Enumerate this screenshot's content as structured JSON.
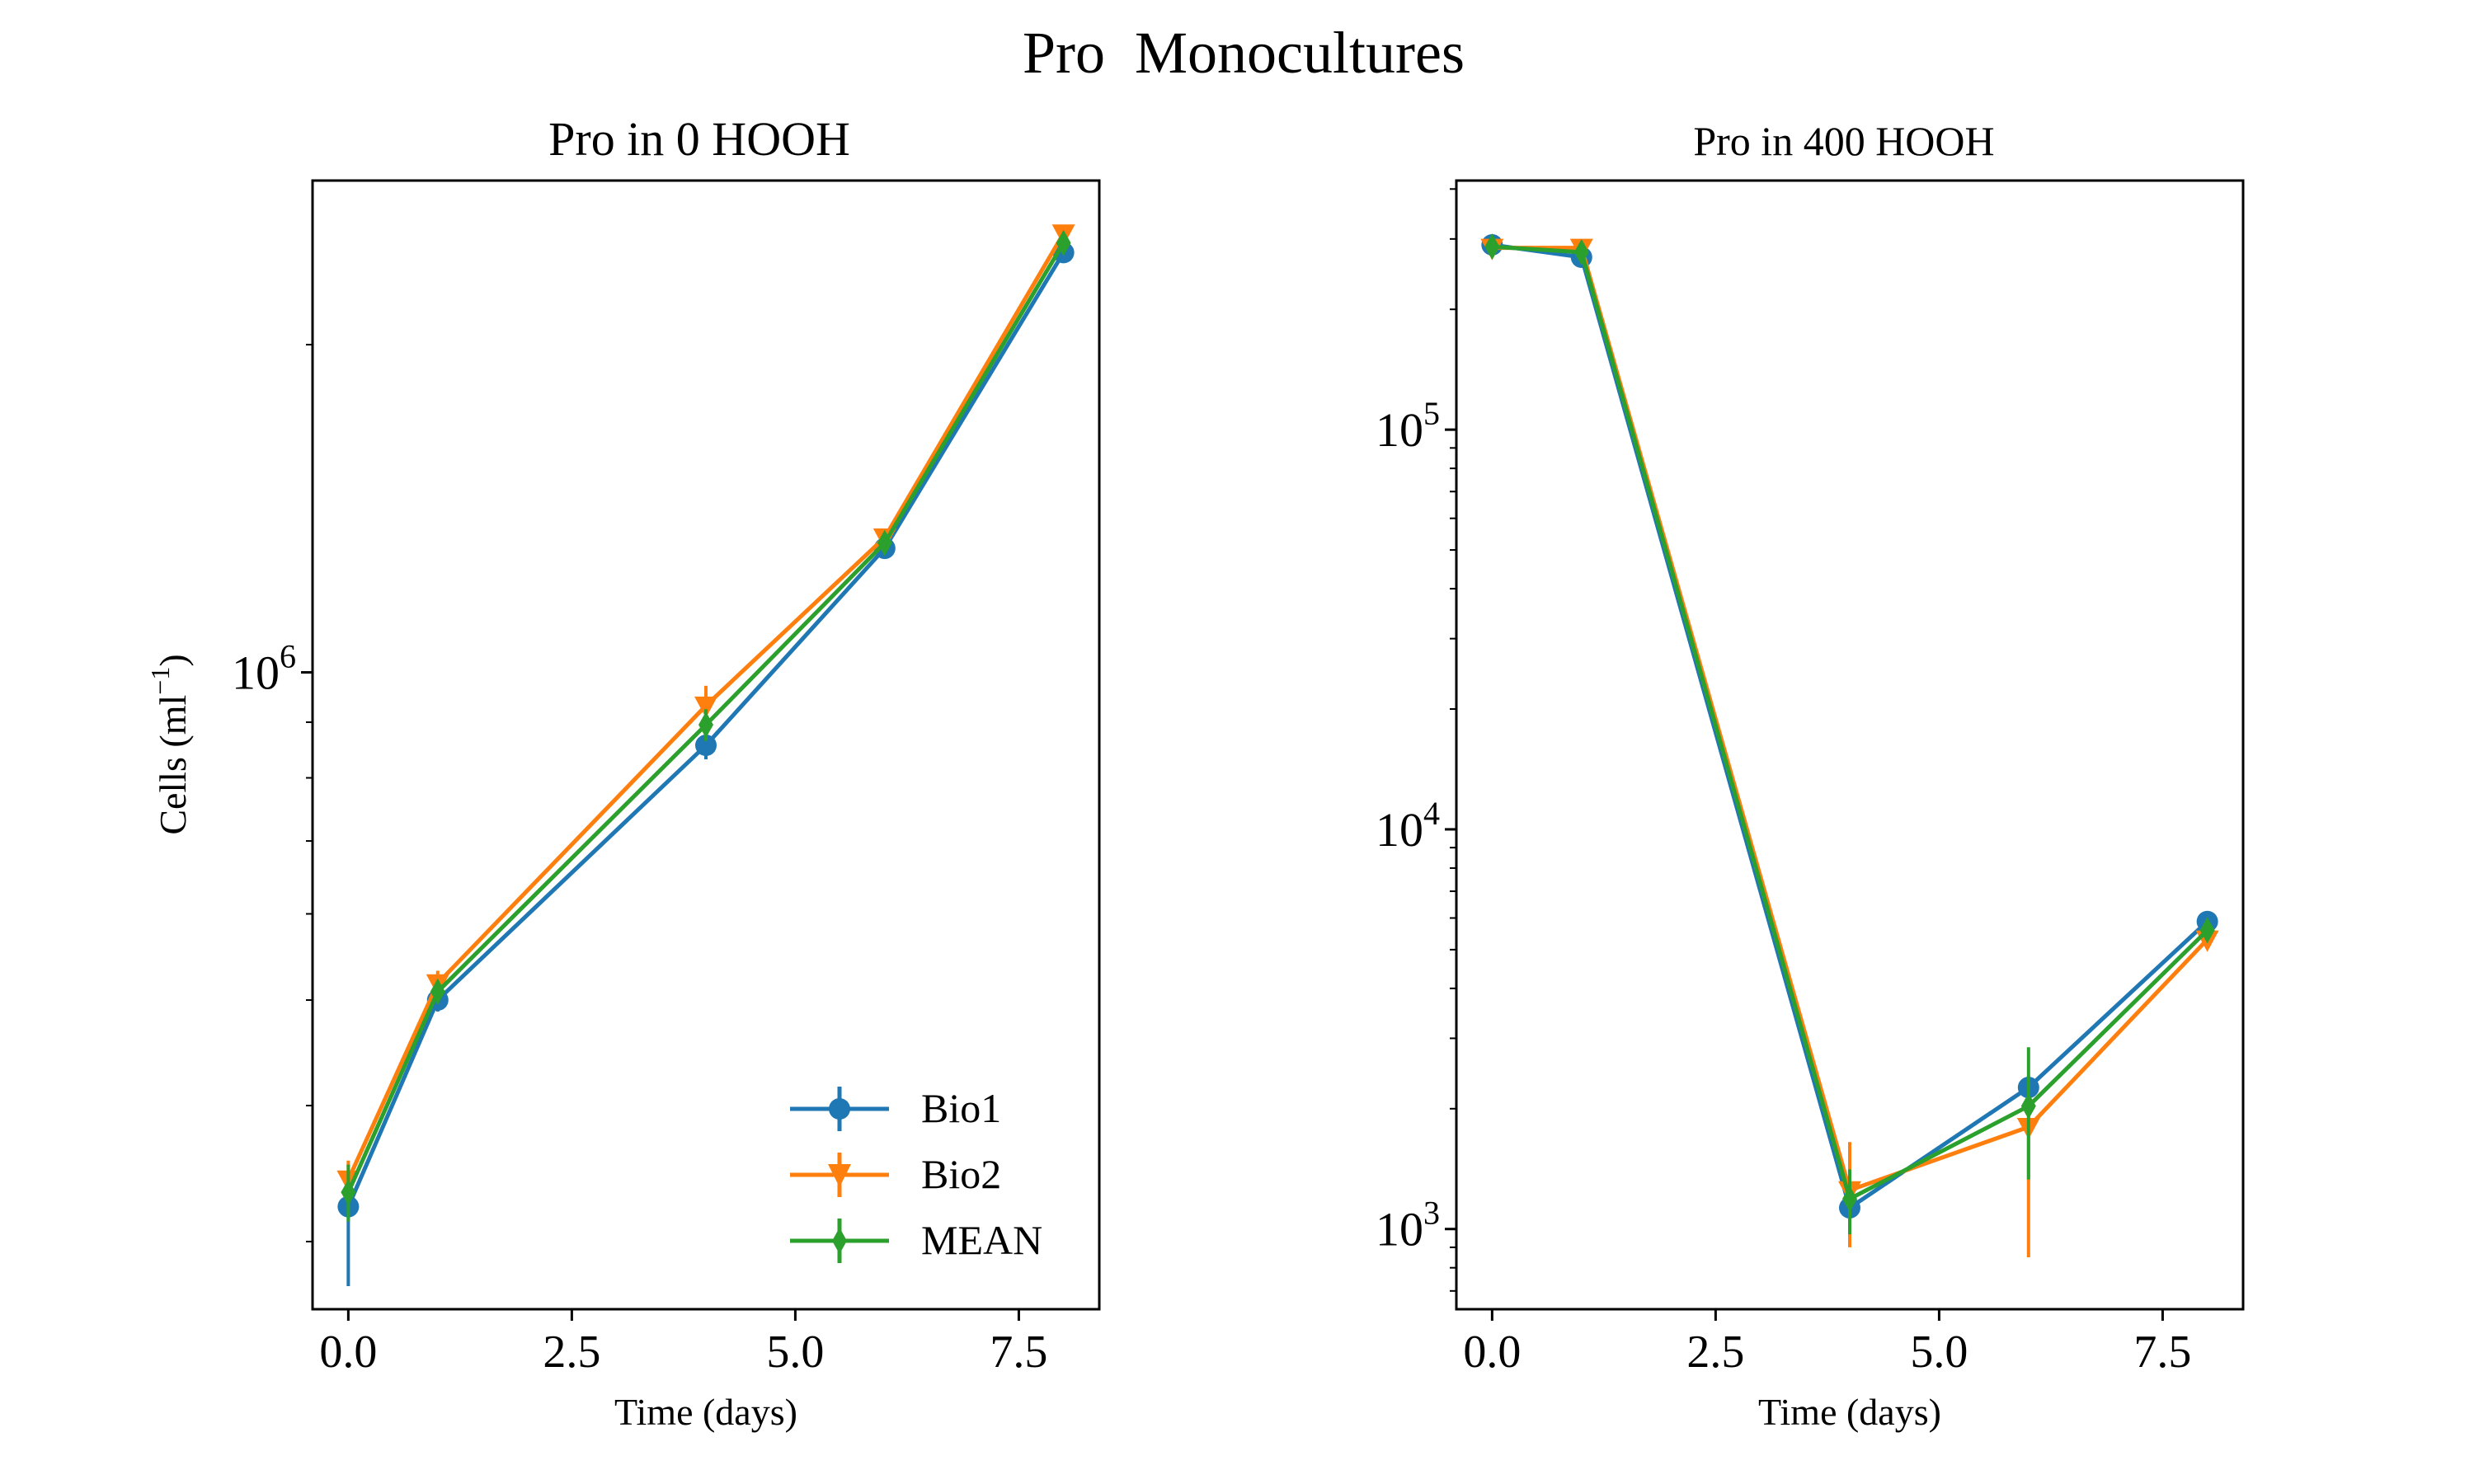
{
  "figure": {
    "suptitle": "Pro  Monocultures"
  },
  "colors": {
    "bio1": "#1f77b4",
    "bio2": "#ff7f0e",
    "mean": "#2ca02c",
    "axis": "#000000",
    "background": "#ffffff"
  },
  "chart_data": [
    {
      "type": "line",
      "title": "Pro in 0 HOOH",
      "xlabel": "Time (days)",
      "ylabel": "Cells (ml",
      "ylabel_exponent": "−1",
      "ylabel_close": ")",
      "yscale": "log",
      "xlim": [
        -0.4,
        8.4
      ],
      "ylim": [
        260000,
        2830000
      ],
      "xticks": [
        0.0,
        2.5,
        5.0,
        7.5
      ],
      "xtick_labels": [
        "0.0",
        "2.5",
        "5.0",
        "7.5"
      ],
      "yticks": [
        1000000
      ],
      "ytick_labels": [
        {
          "base": "10",
          "exp": "6"
        }
      ],
      "grid": false,
      "legend": {
        "position": "lower-right",
        "entries": [
          "Bio1",
          "Bio2",
          "MEAN"
        ]
      },
      "x": [
        0,
        1,
        4,
        6,
        8
      ],
      "series": [
        {
          "name": "Bio1",
          "marker": "circle",
          "values": [
            323000,
            500000,
            857000,
            1300000,
            2430000
          ],
          "err": [
            [
              50000,
              0
            ],
            [
              12000,
              12000
            ],
            [
              25000,
              25000
            ],
            [
              18000,
              18000
            ],
            [
              30000,
              30000
            ]
          ]
        },
        {
          "name": "Bio2",
          "marker": "triangle-down",
          "values": [
            342000,
            518000,
            932000,
            1330000,
            2530000
          ],
          "err": [
            [
              14000,
              14000
            ],
            [
              14000,
              14000
            ],
            [
              40000,
              40000
            ],
            [
              18000,
              18000
            ],
            [
              30000,
              30000
            ]
          ]
        },
        {
          "name": "MEAN",
          "marker": "diamond",
          "values": [
            333000,
            509000,
            895000,
            1315000,
            2480000
          ],
          "err": [
            [
              20000,
              20000
            ],
            [
              12000,
              12000
            ],
            [
              30000,
              30000
            ],
            [
              15000,
              15000
            ],
            [
              25000,
              25000
            ]
          ]
        }
      ]
    },
    {
      "type": "line",
      "title": "Pro in 400 HOOH",
      "xlabel": "Time (days)",
      "ylabel": "",
      "yscale": "log",
      "xlim": [
        -0.4,
        8.4
      ],
      "ylim": [
        630,
        420000
      ],
      "xticks": [
        0.0,
        2.5,
        5.0,
        7.5
      ],
      "xtick_labels": [
        "0.0",
        "2.5",
        "5.0",
        "7.5"
      ],
      "yticks": [
        1000,
        10000,
        100000
      ],
      "ytick_labels": [
        {
          "base": "10",
          "exp": "3"
        },
        {
          "base": "10",
          "exp": "4"
        },
        {
          "base": "10",
          "exp": "5"
        }
      ],
      "grid": false,
      "legend": null,
      "x": [
        0,
        1,
        4,
        6,
        8
      ],
      "series": [
        {
          "name": "Bio1",
          "marker": "circle",
          "values": [
            290000,
            270000,
            1130,
            2260,
            5880
          ],
          "err": [
            [
              8000,
              8000
            ],
            [
              10000,
              10000
            ],
            [
              60,
              60
            ],
            [
              150,
              150
            ],
            [
              150,
              150
            ]
          ]
        },
        {
          "name": "Bio2",
          "marker": "triangle-down",
          "values": [
            285000,
            285000,
            1250,
            1800,
            5300
          ],
          "err": [
            [
              8000,
              8000
            ],
            [
              8000,
              8000
            ],
            [
              350,
              400
            ],
            [
              950,
              0
            ],
            [
              150,
              150
            ]
          ]
        },
        {
          "name": "MEAN",
          "marker": "diamond",
          "values": [
            287000,
            278000,
            1190,
            2030,
            5590
          ],
          "err": [
            [
              8000,
              8000
            ],
            [
              8000,
              8000
            ],
            [
              220,
              220
            ],
            [
              700,
              820
            ],
            [
              120,
              120
            ]
          ]
        }
      ]
    }
  ]
}
